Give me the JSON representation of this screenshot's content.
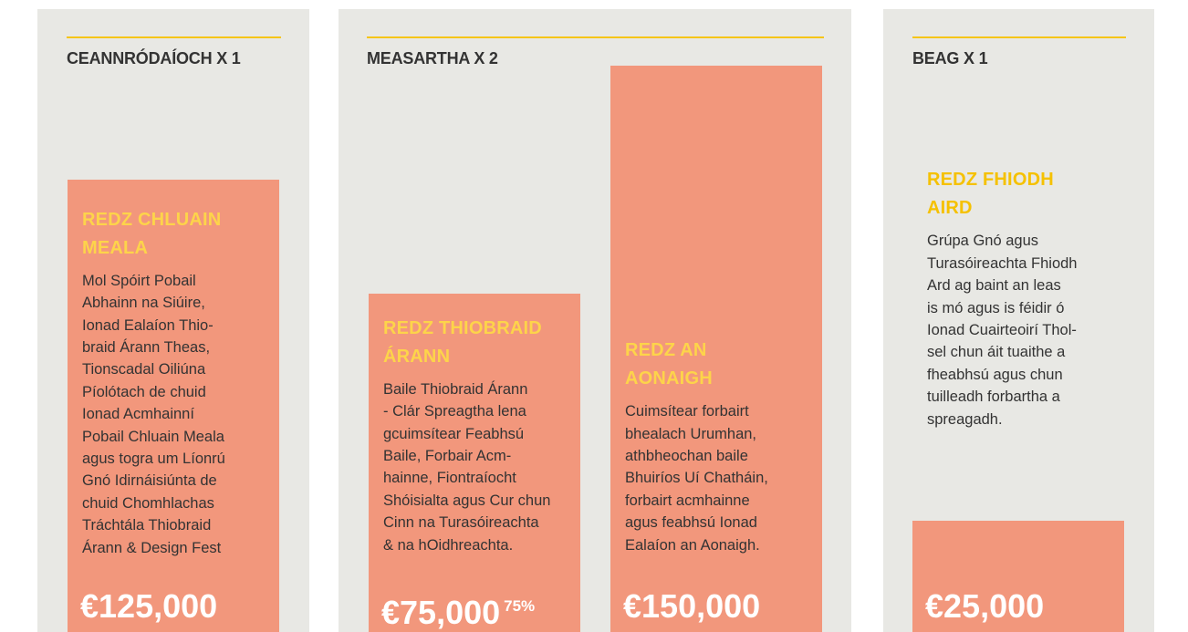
{
  "panels": [
    {
      "heading": "CEANNRÓDAÍOCH X 1",
      "items": [
        {
          "title": [
            "REDZ CHLUAIN",
            "MEALA"
          ],
          "body": [
            "Mol Spóirt Pobail",
            "Abhainn na Siúire,",
            "Ionad Ealaíon Thio-",
            "braid Árann Theas,",
            "Tionscadal Oiliúna",
            "Píolótach de chuid",
            "Ionad Acmhainní",
            "Pobail Chluain Meala",
            "agus togra um Líonrú",
            "Gnó Idirnáisiúnta de",
            "chuid Chomhlachas",
            "Tráchtála Thiobraid",
            "Árann & Design Fest"
          ],
          "amount": "€125,000"
        }
      ]
    },
    {
      "heading": "MEASARTHA X 2",
      "items": [
        {
          "title": [
            "REDZ THIOBRAID",
            "ÁRANN"
          ],
          "body": [
            "Baile Thiobraid Árann",
            "- Clár Spreagtha lena",
            "gcuimsítear Feabhsú",
            "Baile, Forbair Acm-",
            "hainne, Fiontraíocht",
            "Shóisialta agus Cur chun",
            "Cinn na Turasóireachta",
            "& na hOidhreachta."
          ],
          "amount": "€75,000",
          "note": "75%"
        },
        {
          "title": [
            "REDZ AN",
            "AONAIGH"
          ],
          "body": [
            "Cuimsítear forbairt",
            "bhealach Urumhan,",
            "athbheochan baile",
            "Bhuiríos Uí Chatháin,",
            "forbairt acmhainne",
            "agus feabhsú Ionad",
            "Ealaíon an Aonaigh."
          ],
          "amount": "€150,000"
        }
      ]
    },
    {
      "heading": "BEAG X 1",
      "items": [
        {
          "title": [
            "REDZ FHIODH",
            "AIRD"
          ],
          "body": [
            "Grúpa Gnó agus",
            "Turasóireachta Fhiodh",
            "Ard ag baint an leas",
            "is mó agus is féidir ó",
            "Ionad Cuairteoirí Thol-",
            "sel chun áit tuaithe a",
            "fheabhsú agus chun",
            "tuilleadh forbartha a",
            "spreagadh."
          ],
          "amount": "€25,000"
        }
      ]
    }
  ]
}
